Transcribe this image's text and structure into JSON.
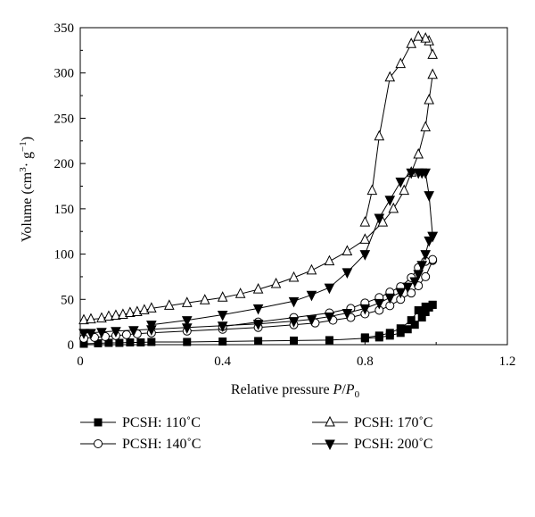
{
  "chart_data": {
    "type": "line",
    "title": "",
    "xlabel": "Relative pressure P/P0",
    "ylabel": "Volume (cm3·g−1)",
    "xlim": [
      0,
      1.2
    ],
    "ylim": [
      0,
      350
    ],
    "xticks": [
      0,
      0.4,
      0.8,
      1.2
    ],
    "xtick_labels": [
      "0",
      "0.4",
      "0.8",
      "1.2"
    ],
    "yticks": [
      0,
      50,
      100,
      150,
      200,
      250,
      300,
      350
    ],
    "ytick_labels": [
      "0",
      "50",
      "100",
      "150",
      "200",
      "250",
      "300",
      "350"
    ],
    "grid": false,
    "legend_position": "below",
    "series": [
      {
        "name": "PCSH: 110˚C",
        "marker": "square-filled",
        "adsorption": {
          "x": [
            0.01,
            0.05,
            0.08,
            0.11,
            0.14,
            0.17,
            0.2,
            0.3,
            0.4,
            0.5,
            0.6,
            0.7,
            0.8,
            0.84,
            0.87,
            0.9,
            0.92,
            0.94,
            0.96,
            0.97,
            0.98,
            0.99
          ],
          "y": [
            1,
            1.5,
            2,
            2,
            2.5,
            2.5,
            3,
            3,
            3.5,
            4,
            4.5,
            5,
            7,
            8,
            10,
            13,
            17,
            22,
            30,
            36,
            41,
            44
          ]
        },
        "desorption": {
          "x": [
            0.99,
            0.97,
            0.95,
            0.93,
            0.9,
            0.87,
            0.84,
            0.8
          ],
          "y": [
            44,
            42,
            38,
            27,
            18,
            13,
            10,
            8
          ]
        }
      },
      {
        "name": "PCSH: 140˚C",
        "marker": "circle-open",
        "adsorption": {
          "x": [
            0.01,
            0.04,
            0.07,
            0.1,
            0.13,
            0.16,
            0.2,
            0.3,
            0.4,
            0.5,
            0.6,
            0.66,
            0.71,
            0.76,
            0.8,
            0.84,
            0.87,
            0.9,
            0.93,
            0.95,
            0.97,
            0.99
          ],
          "y": [
            7,
            8,
            9,
            10,
            11,
            12,
            13,
            15,
            17,
            19,
            22,
            24,
            27,
            30,
            34,
            38,
            43,
            50,
            57,
            65,
            75,
            93
          ]
        },
        "desorption": {
          "x": [
            0.99,
            0.97,
            0.95,
            0.93,
            0.9,
            0.87,
            0.84,
            0.8,
            0.76,
            0.7,
            0.6,
            0.5,
            0.4
          ],
          "y": [
            94,
            92,
            85,
            74,
            64,
            58,
            52,
            46,
            40,
            35,
            30,
            25,
            20
          ]
        }
      },
      {
        "name": "PCSH: 170˚C",
        "marker": "triangle-up-open",
        "adsorption": {
          "x": [
            0.01,
            0.03,
            0.06,
            0.08,
            0.1,
            0.12,
            0.14,
            0.16,
            0.18,
            0.2,
            0.25,
            0.3,
            0.35,
            0.4,
            0.45,
            0.5,
            0.55,
            0.6,
            0.65,
            0.7,
            0.75,
            0.8,
            0.85,
            0.88,
            0.91,
            0.93,
            0.95,
            0.97,
            0.98,
            0.99
          ],
          "y": [
            27,
            28,
            29,
            31,
            32,
            33,
            35,
            36,
            38,
            40,
            43,
            46,
            49,
            52,
            56,
            61,
            67,
            74,
            82,
            92,
            103,
            116,
            135,
            150,
            170,
            190,
            210,
            240,
            270,
            298
          ]
        },
        "desorption": {
          "x": [
            0.99,
            0.98,
            0.97,
            0.95,
            0.93,
            0.9,
            0.87,
            0.84,
            0.82,
            0.8
          ],
          "y": [
            320,
            335,
            338,
            340,
            332,
            310,
            295,
            230,
            170,
            135
          ]
        }
      },
      {
        "name": "PCSH: 200˚C",
        "marker": "triangle-down-filled",
        "adsorption": {
          "x": [
            0.01,
            0.03,
            0.06,
            0.1,
            0.15,
            0.2,
            0.3,
            0.4,
            0.5,
            0.6,
            0.65,
            0.7,
            0.75,
            0.8,
            0.84,
            0.87,
            0.9,
            0.92,
            0.94,
            0.95,
            0.96,
            0.97,
            0.98,
            0.99
          ],
          "y": [
            13,
            13,
            14,
            15,
            16,
            17,
            19,
            21,
            23,
            26,
            28,
            31,
            35,
            40,
            46,
            52,
            58,
            64,
            70,
            78,
            88,
            100,
            115,
            120
          ]
        },
        "desorption": {
          "x": [
            0.99,
            0.98,
            0.97,
            0.96,
            0.95,
            0.93,
            0.9,
            0.87,
            0.84,
            0.8,
            0.75,
            0.7,
            0.65,
            0.6,
            0.5,
            0.4,
            0.3,
            0.2
          ],
          "y": [
            120,
            165,
            190,
            190,
            190,
            190,
            180,
            160,
            140,
            100,
            80,
            63,
            55,
            48,
            40,
            33,
            27,
            22
          ]
        }
      }
    ]
  }
}
